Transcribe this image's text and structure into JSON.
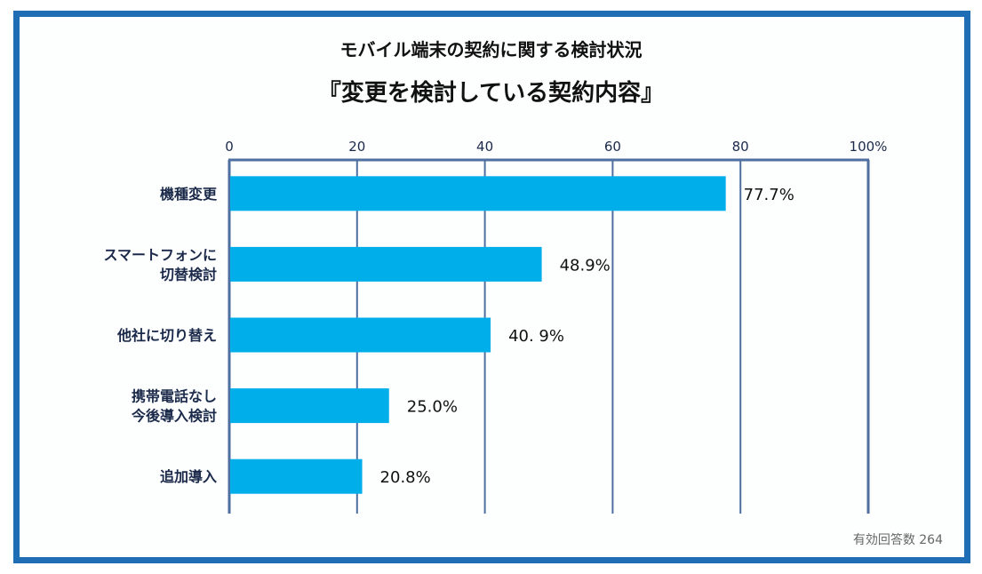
{
  "chart_data": {
    "type": "bar",
    "orientation": "horizontal",
    "title": "モバイル端末の契約に関する検討状況",
    "subtitle": "『変更を検討している契約内容』",
    "categories": [
      [
        "機種変更"
      ],
      [
        "スマートフォンに",
        "切替検討"
      ],
      [
        "他社に切り替え"
      ],
      [
        "携帯電話なし",
        "今後導入検討"
      ],
      [
        "追加導入"
      ]
    ],
    "values": [
      77.7,
      48.9,
      40.9,
      25.0,
      20.8
    ],
    "data_labels": [
      "77.7%",
      "48.9%",
      "40. 9%",
      "25.0%",
      "20.8%"
    ],
    "xticks": [
      "0",
      "20",
      "40",
      "60",
      "80",
      "100%"
    ],
    "xtick_values": [
      0,
      20,
      40,
      60,
      80,
      100
    ],
    "xlim": [
      0,
      100
    ],
    "xlabel": "",
    "ylabel": "",
    "grid": true,
    "bar_color": "#00aeea",
    "axis_color": "#4f6fa0"
  },
  "note": "有効回答数 264"
}
